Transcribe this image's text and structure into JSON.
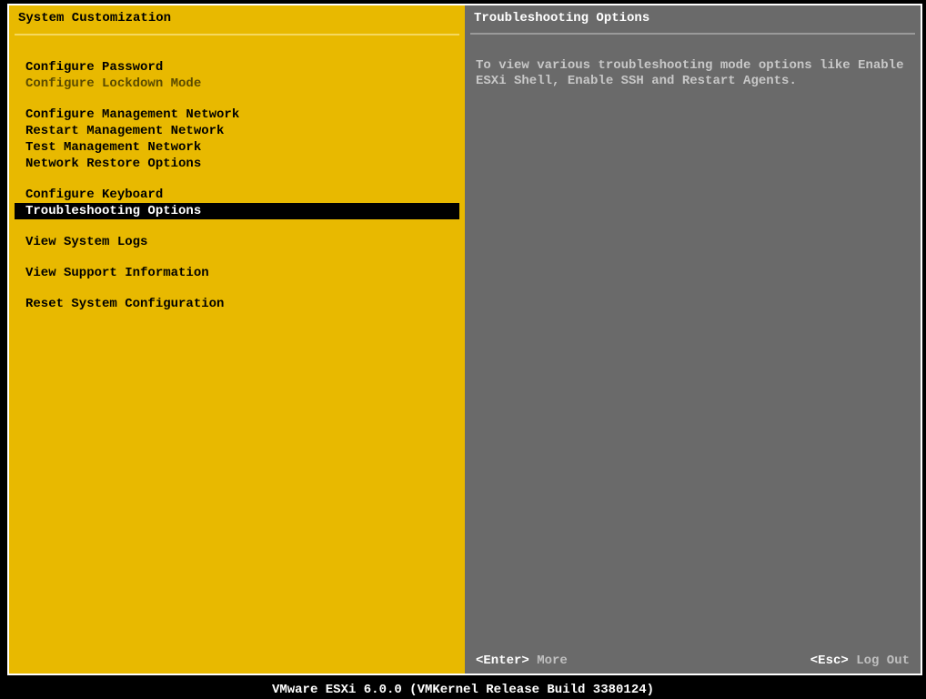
{
  "colors": {
    "left_bg": "#e8b900",
    "right_bg": "#6a6a6a",
    "selected_bg": "#000000",
    "selected_fg": "#ffffff",
    "text_black": "#000000",
    "text_white": "#ffffff",
    "text_muted_right": "#c8c8c8",
    "text_disabled_left": "#5a4a00",
    "outer_border": "#ffffff",
    "background": "#000000"
  },
  "typography": {
    "font_family": "Courier New, monospace",
    "font_size_pt": 10,
    "font_weight": "bold"
  },
  "left": {
    "title": "System Customization",
    "groups": [
      [
        {
          "label": "Configure Password",
          "disabled": false,
          "selected": false
        },
        {
          "label": "Configure Lockdown Mode",
          "disabled": true,
          "selected": false
        }
      ],
      [
        {
          "label": "Configure Management Network",
          "disabled": false,
          "selected": false
        },
        {
          "label": "Restart Management Network",
          "disabled": false,
          "selected": false
        },
        {
          "label": "Test Management Network",
          "disabled": false,
          "selected": false
        },
        {
          "label": "Network Restore Options",
          "disabled": false,
          "selected": false
        }
      ],
      [
        {
          "label": "Configure Keyboard",
          "disabled": false,
          "selected": false
        },
        {
          "label": "Troubleshooting Options",
          "disabled": false,
          "selected": true
        }
      ],
      [
        {
          "label": "View System Logs",
          "disabled": false,
          "selected": false
        }
      ],
      [
        {
          "label": "View Support Information",
          "disabled": false,
          "selected": false
        }
      ],
      [
        {
          "label": "Reset System Configuration",
          "disabled": false,
          "selected": false
        }
      ]
    ]
  },
  "right": {
    "title": "Troubleshooting Options",
    "description": "To view various troubleshooting mode options like Enable ESXi Shell, Enable SSH and Restart Agents.",
    "footer": {
      "enter_key": "<Enter>",
      "enter_label": "More",
      "esc_key": "<Esc>",
      "esc_label": "Log Out"
    }
  },
  "bottom_bar": "VMware ESXi 6.0.0 (VMKernel Release Build 3380124)"
}
